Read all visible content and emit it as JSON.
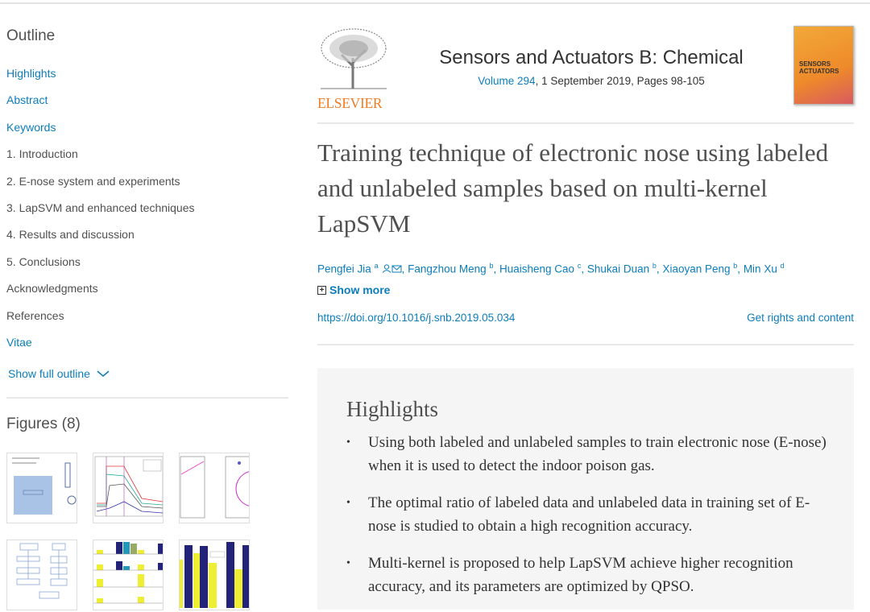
{
  "outline": {
    "heading": "Outline",
    "items": [
      {
        "label": "Highlights",
        "link": true
      },
      {
        "label": "Abstract",
        "link": true
      },
      {
        "label": "Keywords",
        "link": true
      },
      {
        "label": "1. Introduction",
        "link": false
      },
      {
        "label": "2. E-nose system and experiments",
        "link": false
      },
      {
        "label": "3. LapSVM and enhanced techniques",
        "link": false
      },
      {
        "label": "4. Results and discussion",
        "link": false
      },
      {
        "label": "5. Conclusions",
        "link": false
      },
      {
        "label": "Acknowledgments",
        "link": false
      },
      {
        "label": "References",
        "link": false
      },
      {
        "label": "Vitae",
        "link": true
      }
    ],
    "show_full": "Show full outline"
  },
  "figures": {
    "heading": "Figures (8)"
  },
  "journal": {
    "publisher": "ELSEVIER",
    "name": "Sensors and Actuators B: Chemical",
    "volume_link": "Volume 294",
    "volume_rest": ", 1 September 2019, Pages 98-105",
    "cover_text_1": "SENSORS",
    "cover_text_2": "ACTUATORS"
  },
  "article": {
    "title": "Training technique of electronic nose using labeled and unlabeled samples based on multi-kernel LapSVM",
    "authors": [
      {
        "name": "Pengfei Jia",
        "sup": "a"
      },
      {
        "name": "Fangzhou Meng",
        "sup": "b"
      },
      {
        "name": "Huaisheng Cao",
        "sup": "c"
      },
      {
        "name": "Shukai Duan",
        "sup": "b"
      },
      {
        "name": "Xiaoyan Peng",
        "sup": "b"
      },
      {
        "name": "Min Xu",
        "sup": "d"
      }
    ],
    "show_more": "Show more",
    "doi": "https://doi.org/10.1016/j.snb.2019.05.034",
    "rights": "Get rights and content"
  },
  "highlights": {
    "heading": "Highlights",
    "items": [
      "Using both labeled and unlabeled samples to train electronic nose (E-nose) when it is used to detect the indoor poison gas.",
      "The optimal ratio of labeled data and unlabeled data in training set of E-nose is studied to obtain a high recognition accuracy.",
      "Multi-kernel is proposed to help LapSVM achieve higher recognition accuracy, and its parameters are optimized by QPSO."
    ]
  },
  "colors": {
    "link": "#0c7dbb",
    "publisher": "#f07c22",
    "highlight_bg": "#f5f5f5"
  }
}
